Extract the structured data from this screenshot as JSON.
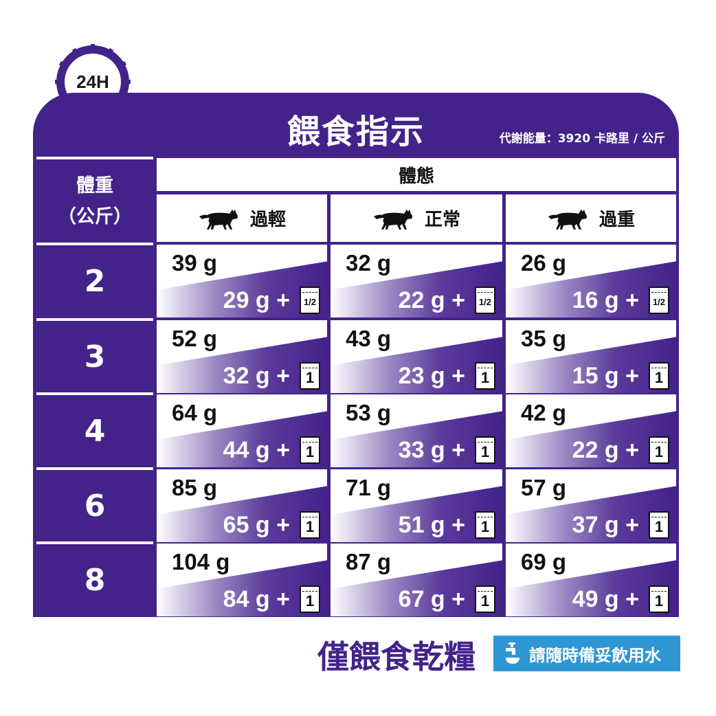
{
  "badge": "24H",
  "title": "餵食指示",
  "energy": "代謝能量：3920 卡路里 / 公斤",
  "weight_header": "體重\n（公斤）",
  "weight_header_l1": "體重",
  "weight_header_l2": "（公斤）",
  "body_header": "體態",
  "conditions": [
    "過輕",
    "正常",
    "過重"
  ],
  "icons": {
    "cat": "cat-silhouette-icon",
    "bag": "food-pouch-icon",
    "tap": "water-tap-icon"
  },
  "colors": {
    "purple": "#43238a",
    "blue": "#2e96d3"
  },
  "rows": [
    {
      "weight": "2",
      "cells": [
        {
          "dry": "39 g",
          "mix": "29 g +",
          "pouch": "1/2"
        },
        {
          "dry": "32 g",
          "mix": "22 g +",
          "pouch": "1/2"
        },
        {
          "dry": "26 g",
          "mix": "16 g +",
          "pouch": "1/2"
        }
      ]
    },
    {
      "weight": "3",
      "cells": [
        {
          "dry": "52 g",
          "mix": "32 g +",
          "pouch": "1"
        },
        {
          "dry": "43 g",
          "mix": "23 g +",
          "pouch": "1"
        },
        {
          "dry": "35 g",
          "mix": "15 g +",
          "pouch": "1"
        }
      ]
    },
    {
      "weight": "4",
      "cells": [
        {
          "dry": "64 g",
          "mix": "44 g +",
          "pouch": "1"
        },
        {
          "dry": "53 g",
          "mix": "33 g +",
          "pouch": "1"
        },
        {
          "dry": "42 g",
          "mix": "22 g +",
          "pouch": "1"
        }
      ]
    },
    {
      "weight": "6",
      "cells": [
        {
          "dry": "85 g",
          "mix": "65 g +",
          "pouch": "1"
        },
        {
          "dry": "71 g",
          "mix": "51 g +",
          "pouch": "1"
        },
        {
          "dry": "57 g",
          "mix": "37 g +",
          "pouch": "1"
        }
      ]
    },
    {
      "weight": "8",
      "cells": [
        {
          "dry": "104 g",
          "mix": "84 g +",
          "pouch": "1"
        },
        {
          "dry": "87 g",
          "mix": "67 g +",
          "pouch": "1"
        },
        {
          "dry": "69 g",
          "mix": "49 g +",
          "pouch": "1"
        }
      ]
    }
  ],
  "footer": {
    "dry_only": "僅餵食乾糧",
    "water": "請隨時備妥飲用水"
  }
}
